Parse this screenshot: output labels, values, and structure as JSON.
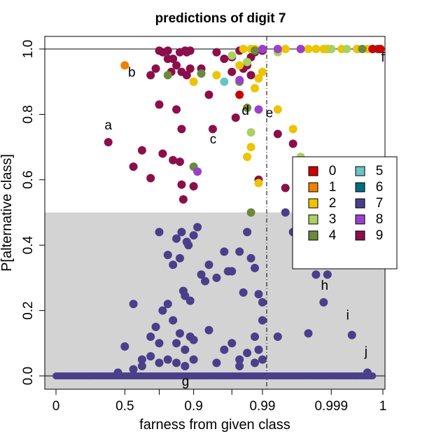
{
  "chart_data": {
    "type": "scatter",
    "title": "predictions of digit 7",
    "xlabel": "farness from given class",
    "ylabel": "P[alternative class]",
    "x_scale": "farness (stretched toward 1)",
    "x_ticks": [
      "0",
      "0.5",
      "0.9",
      "0.99",
      "0.999",
      "1"
    ],
    "y_ticks": [
      "0.0",
      "0.2",
      "0.4",
      "0.6",
      "0.8",
      "1.0"
    ],
    "xlim": [
      0,
      1
    ],
    "ylim": [
      0,
      1
    ],
    "shaded_region": {
      "y_from": 0,
      "y_to": 0.5,
      "color": "#d3d3d3"
    },
    "reference_lines": {
      "horizontal": [
        0,
        1
      ],
      "vertical_dashdot": 0.99
    },
    "legend": {
      "placement": "right",
      "entries": [
        {
          "label": "0",
          "color": "#cc0000"
        },
        {
          "label": "1",
          "color": "#f08000"
        },
        {
          "label": "2",
          "color": "#ecc400"
        },
        {
          "label": "3",
          "color": "#a8d160"
        },
        {
          "label": "4",
          "color": "#6a8a3c"
        },
        {
          "label": "5",
          "color": "#6bc4c4"
        },
        {
          "label": "6",
          "color": "#006d80"
        },
        {
          "label": "7",
          "color": "#4a3f8a"
        },
        {
          "label": "8",
          "color": "#9b3fcc"
        },
        {
          "label": "9",
          "color": "#8a0f4a"
        }
      ]
    },
    "annotations": [
      {
        "label": "a",
        "x": 0.38,
        "y": 0.715
      },
      {
        "label": "b",
        "x": 0.5,
        "y": 0.95
      },
      {
        "label": "c",
        "x": 0.92,
        "y": 0.75
      },
      {
        "label": "d",
        "x": 0.955,
        "y": 0.79
      },
      {
        "label": "e",
        "x": 0.99,
        "y": 0.74
      },
      {
        "label": "f",
        "x": 1.0,
        "y": 1.0
      },
      {
        "label": "g",
        "x": 0.97,
        "y": 0.0
      },
      {
        "label": "h",
        "x": 0.9985,
        "y": 0.31
      },
      {
        "label": "i",
        "x": 0.9994,
        "y": 0.125
      },
      {
        "label": "j",
        "x": 0.9997,
        "y": 0.01
      }
    ],
    "series": [
      {
        "name": "9",
        "color": "#8a0f4a",
        "points": [
          [
            0.38,
            0.715
          ],
          [
            0.55,
            0.64
          ],
          [
            0.6,
            0.69
          ],
          [
            0.65,
            0.605
          ],
          [
            0.7,
            0.83
          ],
          [
            0.72,
            0.68
          ],
          [
            0.78,
            0.66
          ],
          [
            0.82,
            0.655
          ],
          [
            0.83,
            0.585
          ],
          [
            0.84,
            0.54
          ],
          [
            0.83,
            0.755
          ],
          [
            0.8,
            0.815
          ],
          [
            0.65,
            0.92
          ],
          [
            0.68,
            0.94
          ],
          [
            0.72,
            0.99
          ],
          [
            0.75,
            0.995
          ],
          [
            0.78,
            0.97
          ],
          [
            0.8,
            0.95
          ],
          [
            0.83,
            0.93
          ],
          [
            0.86,
            0.92
          ],
          [
            0.88,
            0.995
          ],
          [
            0.9,
            0.58
          ],
          [
            0.91,
            0.94
          ],
          [
            0.92,
            0.86
          ],
          [
            0.925,
            0.755
          ],
          [
            0.93,
            0.99
          ],
          [
            0.94,
            0.97
          ],
          [
            0.95,
            0.93
          ],
          [
            0.955,
            0.79
          ],
          [
            0.96,
            0.995
          ],
          [
            0.97,
            0.95
          ],
          [
            0.975,
            0.92
          ],
          [
            0.98,
            0.99
          ],
          [
            0.985,
            0.6
          ],
          [
            0.992,
            0.74
          ],
          [
            0.994,
            0.71
          ],
          [
            0.993,
            0.575
          ],
          [
            0.86,
            0.99
          ],
          [
            0.88,
            0.94
          ],
          [
            0.82,
            0.99
          ],
          [
            0.98,
            0.995
          ],
          [
            0.7,
            0.995
          ],
          [
            0.75,
            0.97
          ],
          [
            0.77,
            0.93
          ],
          [
            0.85,
            0.995
          ],
          [
            0.95,
            0.975
          ],
          [
            0.965,
            0.94
          ],
          [
            0.975,
            0.975
          ],
          [
            0.99,
            0.995
          ],
          [
            0.9985,
            1.0
          ],
          [
            0.9995,
            1.0
          ]
        ]
      },
      {
        "name": "2",
        "color": "#ecc400",
        "points": [
          [
            0.9,
            0.9
          ],
          [
            0.93,
            0.92
          ],
          [
            0.97,
            0.67
          ],
          [
            0.975,
            0.7
          ],
          [
            0.98,
            0.88
          ],
          [
            0.985,
            0.91
          ],
          [
            0.99,
            0.93
          ],
          [
            0.992,
            0.815
          ],
          [
            0.994,
            0.755
          ],
          [
            0.985,
            0.59
          ],
          [
            0.96,
            0.95
          ],
          [
            0.965,
            1.0
          ],
          [
            0.975,
            1.0
          ],
          [
            0.98,
            1.0
          ],
          [
            0.99,
            1.0
          ],
          [
            0.993,
            1.0
          ],
          [
            0.995,
            1.0
          ],
          [
            0.996,
            1.0
          ],
          [
            0.997,
            1.0
          ],
          [
            0.998,
            1.0
          ],
          [
            0.9985,
            1.0
          ],
          [
            0.999,
            1.0
          ],
          [
            0.9992,
            1.0
          ],
          [
            0.9995,
            1.0
          ],
          [
            0.9997,
            1.0
          ],
          [
            0.9998,
            1.0
          ],
          [
            0.9999,
            1.0
          ]
        ]
      },
      {
        "name": "3",
        "color": "#a8d160",
        "points": [
          [
            0.95,
            0.98
          ],
          [
            0.97,
            0.96
          ],
          [
            0.975,
            0.745
          ],
          [
            0.992,
            0.99
          ],
          [
            0.995,
            0.67
          ],
          [
            0.999,
            1.0
          ],
          [
            0.9993,
            1.0
          ]
        ]
      },
      {
        "name": "4",
        "color": "#6a8a3c",
        "points": [
          [
            0.75,
            0.92
          ],
          [
            0.9,
            0.64
          ],
          [
            0.91,
            0.925
          ],
          [
            0.96,
            0.9
          ],
          [
            0.97,
            0.82
          ],
          [
            0.975,
            0.5
          ],
          [
            0.98,
            0.995
          ],
          [
            0.9996,
            1.0
          ]
        ]
      },
      {
        "name": "8",
        "color": "#9b3fcc",
        "points": [
          [
            0.905,
            0.625
          ],
          [
            0.96,
            0.905
          ],
          [
            0.985,
            0.815
          ],
          [
            0.99,
            1.0
          ],
          [
            0.992,
            1.0
          ],
          [
            0.995,
            1.0
          ]
        ]
      },
      {
        "name": "5",
        "color": "#6bc4c4",
        "points": [
          [
            0.94,
            0.9
          ],
          [
            0.9998,
            1.0
          ]
        ]
      },
      {
        "name": "6",
        "color": "#006d80",
        "points": [
          [
            0.9999,
            1.0
          ]
        ]
      },
      {
        "name": "1",
        "color": "#f08000",
        "points": [
          [
            0.5,
            0.95
          ],
          [
            0.99995,
            1.0
          ]
        ]
      },
      {
        "name": "0",
        "color": "#cc0000",
        "points": [
          [
            0.96,
            0.86
          ],
          [
            0.9998,
            1.0
          ],
          [
            0.99995,
            1.0
          ]
        ]
      },
      {
        "name": "7",
        "color": "#4a3f8a",
        "points": [
          [
            0.7,
            0.44
          ],
          [
            0.75,
            0.37
          ],
          [
            0.78,
            0.34
          ],
          [
            0.8,
            0.42
          ],
          [
            0.82,
            0.36
          ],
          [
            0.83,
            0.44
          ],
          [
            0.84,
            0.26
          ],
          [
            0.85,
            0.245
          ],
          [
            0.86,
            0.41
          ],
          [
            0.87,
            0.4
          ],
          [
            0.88,
            0.23
          ],
          [
            0.9,
            0.43
          ],
          [
            0.905,
            0.455
          ],
          [
            0.91,
            0.31
          ],
          [
            0.915,
            0.29
          ],
          [
            0.92,
            0.34
          ],
          [
            0.93,
            0.3
          ],
          [
            0.94,
            0.38
          ],
          [
            0.945,
            0.32
          ],
          [
            0.95,
            0.32
          ],
          [
            0.96,
            0.38
          ],
          [
            0.965,
            0.255
          ],
          [
            0.97,
            0.44
          ],
          [
            0.975,
            0.36
          ],
          [
            0.98,
            0.33
          ],
          [
            0.985,
            0.25
          ],
          [
            0.99,
            0.225
          ],
          [
            0.99,
            0.17
          ],
          [
            0.993,
            0.5
          ],
          [
            0.994,
            0.44
          ],
          [
            0.995,
            0.36
          ],
          [
            0.997,
            0.31
          ],
          [
            0.998,
            0.225
          ],
          [
            0.996,
            0.13
          ],
          [
            0.992,
            0.12
          ],
          [
            0.55,
            0.22
          ],
          [
            0.6,
            0.05
          ],
          [
            0.65,
            0.12
          ],
          [
            0.68,
            0.15
          ],
          [
            0.7,
            0.1
          ],
          [
            0.72,
            0.2
          ],
          [
            0.75,
            0.22
          ],
          [
            0.78,
            0.17
          ],
          [
            0.8,
            0.1
          ],
          [
            0.82,
            0.13
          ],
          [
            0.85,
            0.08
          ],
          [
            0.88,
            0.12
          ],
          [
            0.9,
            0.11
          ],
          [
            0.92,
            0.14
          ],
          [
            0.94,
            0.08
          ],
          [
            0.95,
            0.1
          ],
          [
            0.96,
            0.05
          ],
          [
            0.97,
            0.07
          ],
          [
            0.98,
            0.12
          ],
          [
            0.985,
            0.08
          ],
          [
            0.5,
            0.09
          ],
          [
            0.55,
            0.02
          ],
          [
            0.45,
            0.01
          ],
          [
            0.6,
            0.03
          ],
          [
            0.65,
            0.06
          ],
          [
            0.7,
            0.04
          ],
          [
            0.75,
            0.05
          ],
          [
            0.8,
            0.04
          ],
          [
            0.85,
            0.03
          ],
          [
            0.9,
            0.05
          ],
          [
            0.93,
            0.04
          ],
          [
            0.96,
            0.03
          ],
          [
            0.98,
            0.04
          ],
          [
            0.99,
            0.05
          ],
          [
            0.9985,
            0.31
          ],
          [
            0.9994,
            0.125
          ],
          [
            0.9997,
            0.01
          ]
        ]
      }
    ]
  }
}
